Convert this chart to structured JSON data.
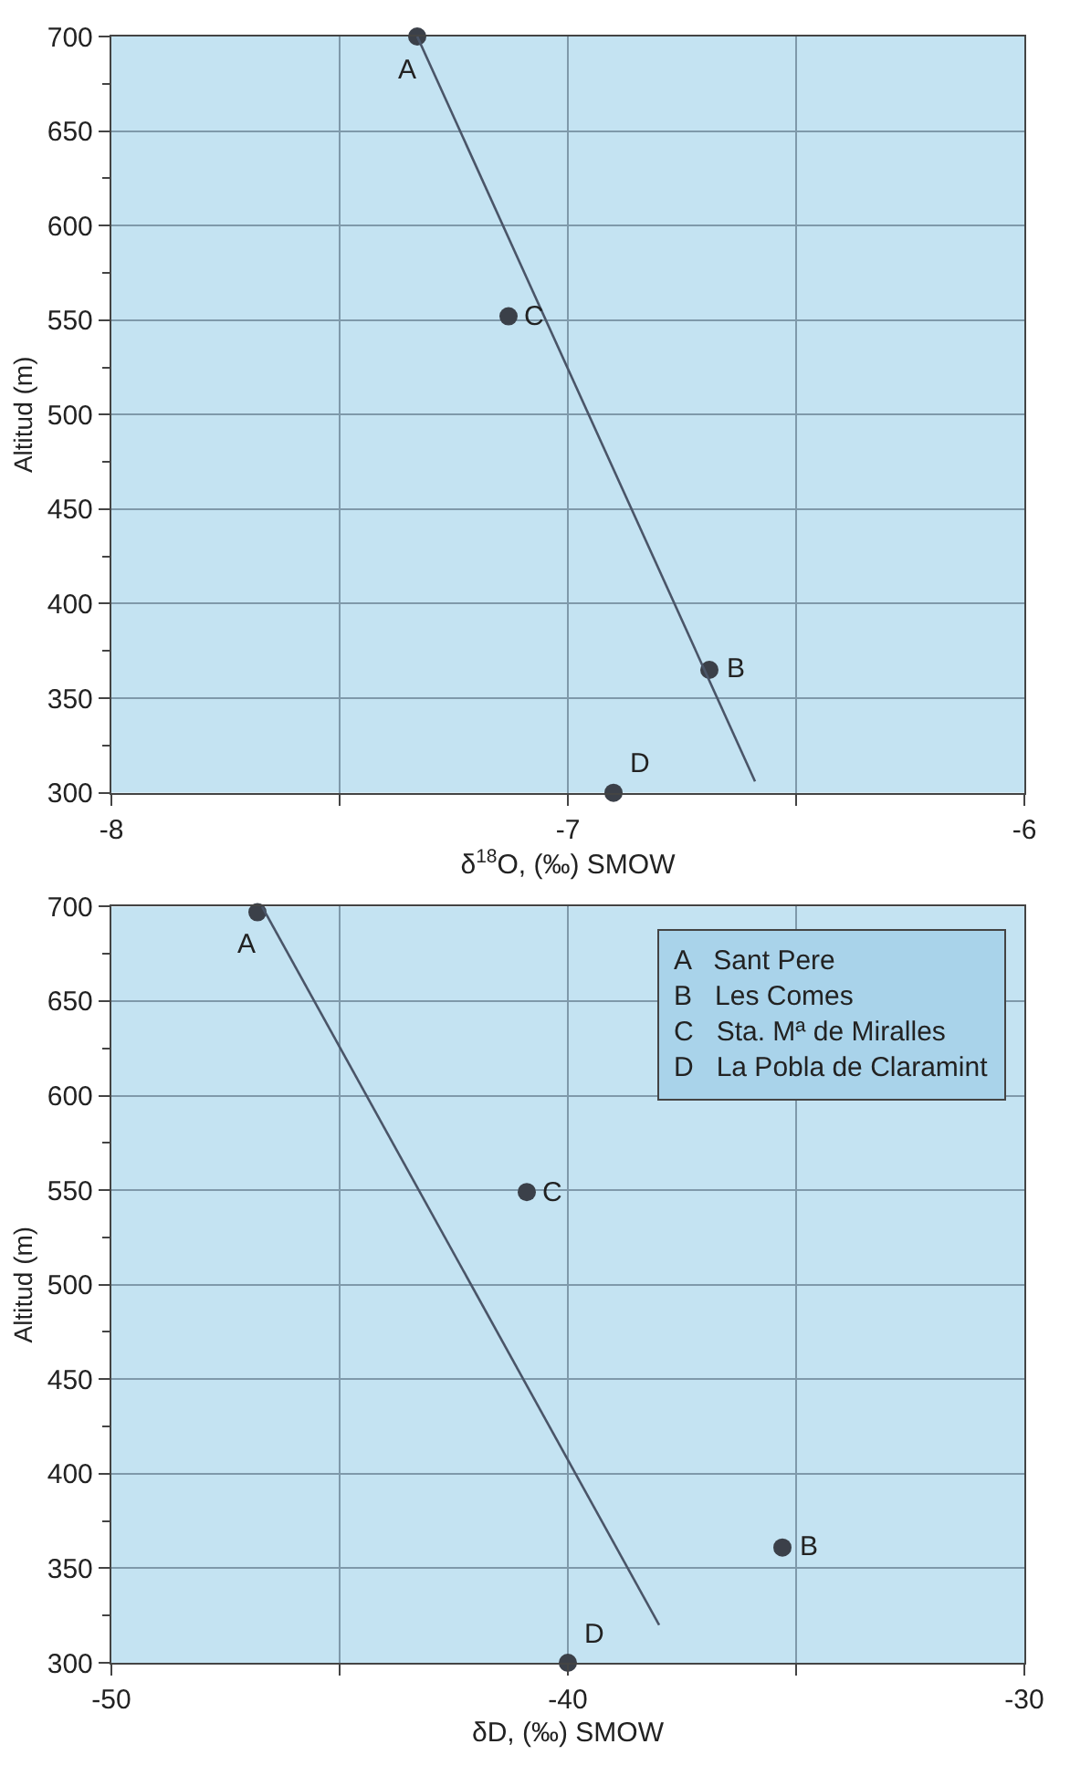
{
  "chart_data": [
    {
      "type": "scatter",
      "xlabel": "δ$^{18}$O, (‰) SMOW",
      "ylabel": "Altitud (m)",
      "xlim": [
        -8,
        -6
      ],
      "ylim": [
        300,
        700
      ],
      "xticks": [
        -8,
        {
          "value": -7.5,
          "label": null
        },
        -7,
        {
          "value": -6.5,
          "label": null
        },
        -6
      ],
      "yticks": [
        300,
        {
          "value": 325,
          "label": null
        },
        350,
        {
          "value": 375,
          "label": null
        },
        400,
        {
          "value": 425,
          "label": null
        },
        450,
        {
          "value": 475,
          "label": null
        },
        500,
        {
          "value": 525,
          "label": null
        },
        550,
        {
          "value": 575,
          "label": null
        },
        600,
        {
          "value": 625,
          "label": null
        },
        650,
        {
          "value": 675,
          "label": null
        },
        700
      ],
      "grid": true,
      "series": [
        {
          "marker": "circle",
          "color": "#3b4049",
          "x": [
            -7.33,
            -6.69,
            -7.13,
            -6.9
          ],
          "values": [
            700,
            365,
            552,
            300
          ]
        },
        {
          "type": "line",
          "marker": "none",
          "color": "#4a5568",
          "x": [
            -7.33,
            -6.59
          ],
          "values": [
            700,
            306
          ]
        }
      ],
      "annotations": [
        {
          "text": "A",
          "x": -7.33,
          "y": 700
        },
        {
          "text": "B",
          "x": -6.69,
          "y": 365
        },
        {
          "text": "C",
          "x": -7.13,
          "y": 552
        },
        {
          "text": "D",
          "x": -6.9,
          "y": 300
        }
      ]
    },
    {
      "type": "scatter",
      "xlabel": "δD, (‰) SMOW",
      "ylabel": "Altitud (m)",
      "xlim": [
        -50,
        -30
      ],
      "ylim": [
        300,
        700
      ],
      "xticks": [
        -50,
        {
          "value": -45,
          "label": null
        },
        -40,
        {
          "value": -35,
          "label": null
        },
        -30
      ],
      "yticks": [
        300,
        {
          "value": 325,
          "label": null
        },
        350,
        {
          "value": 375,
          "label": null
        },
        400,
        {
          "value": 425,
          "label": null
        },
        450,
        {
          "value": 475,
          "label": null
        },
        500,
        {
          "value": 525,
          "label": null
        },
        550,
        {
          "value": 575,
          "label": null
        },
        600,
        {
          "value": 625,
          "label": null
        },
        650,
        {
          "value": 675,
          "label": null
        },
        700
      ],
      "grid": true,
      "series": [
        {
          "marker": "circle",
          "color": "#3b4049",
          "x": [
            -46.8,
            -35.3,
            -40.9,
            -40.0
          ],
          "values": [
            697,
            361,
            549,
            300
          ]
        },
        {
          "type": "line",
          "marker": "none",
          "color": "#4a5568",
          "x": [
            -46.7,
            -38.0
          ],
          "values": [
            700,
            320
          ]
        }
      ],
      "annotations": [
        {
          "text": "A",
          "x": -46.8,
          "y": 697
        },
        {
          "text": "B",
          "x": -35.3,
          "y": 361
        },
        {
          "text": "C",
          "x": -40.9,
          "y": 549
        },
        {
          "text": "D",
          "x": -40.0,
          "y": 300
        },
        "A   Sant Pere",
        "B   Les Comes",
        "C   Sta. Mª de Miralles",
        "D   La Pobla de Claramint"
      ]
    }
  ]
}
